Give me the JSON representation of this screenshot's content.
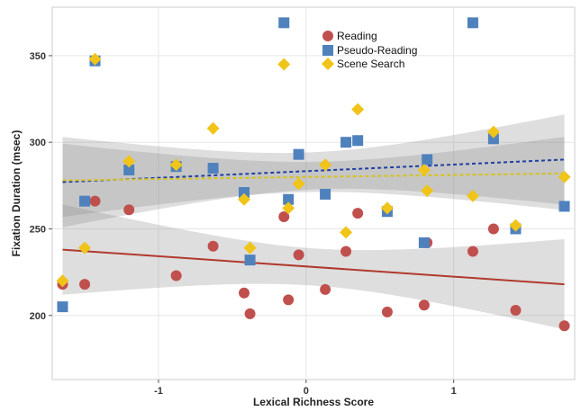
{
  "chart_data": {
    "type": "scatter",
    "xlabel": "Lexical Richness Score",
    "ylabel": "Fixation Duration (msec)",
    "xlim": [
      -1.72,
      1.82
    ],
    "ylim": [
      163,
      378
    ],
    "x_ticks": [
      {
        "value": -1,
        "label": "-1"
      },
      {
        "value": 0,
        "label": "0"
      },
      {
        "value": 1,
        "label": "1"
      }
    ],
    "y_ticks": [
      {
        "value": 200,
        "label": "200"
      },
      {
        "value": 250,
        "label": "250"
      },
      {
        "value": 300,
        "label": "300"
      },
      {
        "value": 350,
        "label": "350"
      }
    ],
    "grid": true,
    "legend_position": "top-center",
    "series": [
      {
        "name": "Reading",
        "marker": "circle",
        "color": "#c0504d",
        "points": [
          [
            -1.65,
            218
          ],
          [
            -1.5,
            218
          ],
          [
            -1.43,
            266
          ],
          [
            -1.2,
            261
          ],
          [
            -0.88,
            223
          ],
          [
            -0.63,
            240
          ],
          [
            -0.42,
            213
          ],
          [
            -0.38,
            201
          ],
          [
            -0.15,
            257
          ],
          [
            -0.12,
            209
          ],
          [
            -0.05,
            235
          ],
          [
            0.13,
            215
          ],
          [
            0.27,
            237
          ],
          [
            0.35,
            259
          ],
          [
            0.55,
            202
          ],
          [
            0.8,
            206
          ],
          [
            0.82,
            242
          ],
          [
            1.13,
            237
          ],
          [
            1.27,
            250
          ],
          [
            1.42,
            203
          ],
          [
            1.75,
            194
          ]
        ],
        "trend": {
          "start": [
            -1.65,
            238
          ],
          "end": [
            1.75,
            218
          ],
          "line": "solid",
          "color": "#b03a2e"
        }
      },
      {
        "name": "Pseudo-Reading",
        "marker": "square",
        "color": "#4f81bd",
        "points": [
          [
            -1.65,
            205
          ],
          [
            -1.5,
            266
          ],
          [
            -1.43,
            347
          ],
          [
            -1.2,
            284
          ],
          [
            -0.88,
            286
          ],
          [
            -0.63,
            285
          ],
          [
            -0.42,
            271
          ],
          [
            -0.38,
            232
          ],
          [
            -0.15,
            369
          ],
          [
            -0.12,
            267
          ],
          [
            -0.05,
            293
          ],
          [
            0.13,
            270
          ],
          [
            0.27,
            300
          ],
          [
            0.35,
            301
          ],
          [
            0.55,
            260
          ],
          [
            0.8,
            242
          ],
          [
            0.82,
            290
          ],
          [
            1.13,
            369
          ],
          [
            1.27,
            302
          ],
          [
            1.42,
            250
          ],
          [
            1.75,
            263
          ]
        ],
        "trend": {
          "start": [
            -1.65,
            277
          ],
          "end": [
            1.75,
            290
          ],
          "line": "dashed",
          "color": "#1f3fa0"
        }
      },
      {
        "name": "Scene Search",
        "marker": "diamond",
        "color": "#f0c419",
        "points": [
          [
            -1.65,
            220
          ],
          [
            -1.5,
            239
          ],
          [
            -1.43,
            348
          ],
          [
            -1.2,
            289
          ],
          [
            -0.88,
            287
          ],
          [
            -0.63,
            308
          ],
          [
            -0.42,
            267
          ],
          [
            -0.38,
            239
          ],
          [
            -0.15,
            345
          ],
          [
            -0.12,
            262
          ],
          [
            -0.05,
            276
          ],
          [
            0.13,
            287
          ],
          [
            0.27,
            248
          ],
          [
            0.35,
            319
          ],
          [
            0.55,
            262
          ],
          [
            0.8,
            284
          ],
          [
            0.82,
            272
          ],
          [
            1.13,
            269
          ],
          [
            1.27,
            306
          ],
          [
            1.42,
            252
          ],
          [
            1.75,
            280
          ]
        ],
        "trend": {
          "start": [
            -1.65,
            278
          ],
          "end": [
            1.75,
            282
          ],
          "line": "dashed",
          "color": "#d6c21a"
        }
      }
    ]
  }
}
